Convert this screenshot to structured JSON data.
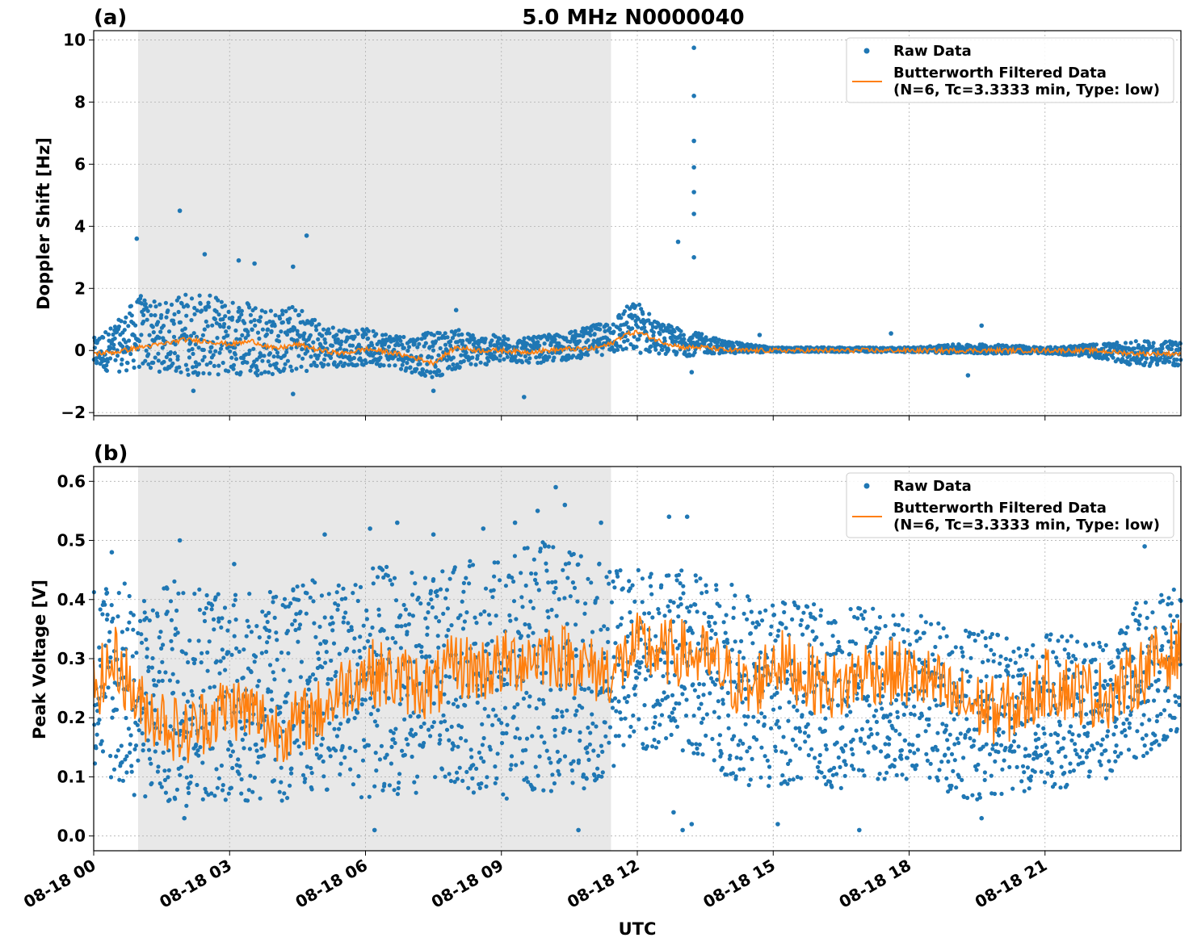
{
  "figure": {
    "title": "5.0 MHz N0000040",
    "xlabel": "UTC"
  },
  "chart_data": [
    {
      "panel": "(a)",
      "type": "scatter",
      "ylabel": "Doppler Shift [Hz]",
      "xlim_hours": [
        0,
        24
      ],
      "ylim": [
        -2.1,
        10.3
      ],
      "yticks": [
        -2,
        0,
        2,
        4,
        6,
        8,
        10
      ],
      "yticklabels": [
        "−2",
        "0",
        "2",
        "4",
        "6",
        "8",
        "10"
      ],
      "grid": true,
      "legend_position": "top-right",
      "shaded_region_hours": [
        0.98,
        11.42
      ],
      "series": [
        {
          "name": "Raw Data",
          "style": "points",
          "color": "#1f77b4",
          "envelope": {
            "x": [
              0,
              0.5,
              1,
              1.5,
              2,
              2.5,
              3,
              3.5,
              4,
              4.5,
              5,
              5.5,
              6,
              6.5,
              7,
              7.5,
              8,
              8.5,
              9,
              9.5,
              10,
              10.5,
              11,
              11.4,
              11.7,
              12,
              12.5,
              13,
              13.5,
              14,
              15,
              16,
              17,
              18,
              19,
              20,
              21,
              22,
              23,
              24
            ],
            "upper": [
              0.4,
              0.9,
              1.8,
              1.5,
              1.9,
              1.8,
              1.6,
              1.7,
              1.3,
              1.5,
              0.9,
              0.7,
              0.7,
              0.6,
              0.5,
              0.6,
              0.7,
              0.5,
              0.5,
              0.4,
              0.5,
              0.6,
              0.8,
              1.0,
              1.4,
              1.6,
              0.9,
              0.7,
              0.5,
              0.3,
              0.1,
              0.1,
              0.1,
              0.1,
              0.2,
              0.2,
              0.1,
              0.2,
              0.3,
              0.3
            ],
            "lower": [
              -0.6,
              -0.7,
              -0.6,
              -0.7,
              -0.8,
              -0.8,
              -0.8,
              -0.8,
              -0.8,
              -0.7,
              -0.6,
              -0.5,
              -0.5,
              -0.5,
              -0.7,
              -0.9,
              -0.6,
              -0.5,
              -0.4,
              -0.4,
              -0.4,
              -0.3,
              -0.2,
              -0.1,
              -0.1,
              -0.1,
              -0.1,
              -0.2,
              -0.1,
              -0.1,
              -0.05,
              -0.05,
              -0.05,
              -0.05,
              -0.1,
              -0.1,
              -0.1,
              -0.2,
              -0.5,
              -0.5
            ]
          },
          "spikes": [
            {
              "x": 0.95,
              "y": 3.6
            },
            {
              "x": 1.9,
              "y": 4.5
            },
            {
              "x": 2.45,
              "y": 3.1
            },
            {
              "x": 3.2,
              "y": 2.9
            },
            {
              "x": 3.55,
              "y": 2.8
            },
            {
              "x": 4.4,
              "y": 2.7
            },
            {
              "x": 4.7,
              "y": 3.7
            },
            {
              "x": 2.2,
              "y": -1.3
            },
            {
              "x": 4.4,
              "y": -1.4
            },
            {
              "x": 7.5,
              "y": -1.3
            },
            {
              "x": 9.5,
              "y": -1.5
            },
            {
              "x": 8.0,
              "y": 1.3
            },
            {
              "x": 12.9,
              "y": 3.5
            },
            {
              "x": 13.25,
              "y": 9.75
            },
            {
              "x": 13.25,
              "y": 8.2
            },
            {
              "x": 13.25,
              "y": 6.75
            },
            {
              "x": 13.25,
              "y": 5.9
            },
            {
              "x": 13.25,
              "y": 5.1
            },
            {
              "x": 13.25,
              "y": 4.4
            },
            {
              "x": 13.25,
              "y": 3.0
            },
            {
              "x": 13.2,
              "y": -0.7
            },
            {
              "x": 14.7,
              "y": 0.5
            },
            {
              "x": 17.6,
              "y": 0.55
            },
            {
              "x": 19.6,
              "y": 0.8
            },
            {
              "x": 19.3,
              "y": -0.8
            }
          ]
        },
        {
          "name": "Butterworth Filtered Data\n(N=6, Tc=3.3333 min, Type: low)",
          "style": "line",
          "color": "#ff7f0e",
          "x": [
            0,
            0.5,
            1,
            1.5,
            2,
            2.5,
            3,
            3.5,
            4,
            4.5,
            5,
            5.5,
            6,
            6.5,
            7,
            7.5,
            8,
            8.5,
            9,
            9.5,
            10,
            10.5,
            11,
            11.4,
            11.7,
            12,
            12.5,
            13,
            13.5,
            14,
            15,
            16,
            17,
            18,
            19,
            20,
            21,
            22,
            23,
            24
          ],
          "y": [
            -0.1,
            -0.05,
            0.1,
            0.2,
            0.35,
            0.3,
            0.2,
            0.3,
            0.05,
            0.2,
            0.0,
            -0.1,
            0.05,
            -0.05,
            -0.2,
            -0.4,
            0.1,
            0.0,
            0.0,
            -0.05,
            0.0,
            0.05,
            0.05,
            0.2,
            0.5,
            0.6,
            0.3,
            0.1,
            0.1,
            0.0,
            0.0,
            0.0,
            0.0,
            0.0,
            0.0,
            0.0,
            0.0,
            0.0,
            -0.1,
            -0.1
          ]
        }
      ]
    },
    {
      "panel": "(b)",
      "type": "scatter",
      "ylabel": "Peak Voltage [V]",
      "xlim_hours": [
        0,
        24
      ],
      "ylim": [
        -0.025,
        0.625
      ],
      "yticks": [
        0.0,
        0.1,
        0.2,
        0.3,
        0.4,
        0.5,
        0.6
      ],
      "yticklabels": [
        "0.0",
        "0.1",
        "0.2",
        "0.3",
        "0.4",
        "0.5",
        "0.6"
      ],
      "grid": true,
      "legend_position": "top-right",
      "shaded_region_hours": [
        0.98,
        11.42
      ],
      "series": [
        {
          "name": "Raw Data",
          "style": "points",
          "color": "#1f77b4",
          "envelope": {
            "x": [
              0,
              0.5,
              1,
              1.5,
              2,
              2.5,
              3,
              3.5,
              4,
              4.5,
              5,
              5.5,
              6,
              6.5,
              7,
              7.5,
              8,
              8.5,
              9,
              9.5,
              10,
              10.5,
              11,
              11.5,
              12,
              12.5,
              13,
              13.5,
              14,
              14.5,
              15,
              15.5,
              16,
              16.5,
              17,
              17.5,
              18,
              18.5,
              19,
              19.5,
              20,
              20.5,
              21,
              21.5,
              22,
              22.5,
              23,
              23.5,
              24
            ],
            "upper": [
              0.43,
              0.45,
              0.4,
              0.42,
              0.45,
              0.43,
              0.42,
              0.41,
              0.42,
              0.43,
              0.44,
              0.43,
              0.45,
              0.46,
              0.45,
              0.44,
              0.46,
              0.47,
              0.47,
              0.49,
              0.5,
              0.49,
              0.47,
              0.45,
              0.46,
              0.45,
              0.45,
              0.44,
              0.43,
              0.41,
              0.4,
              0.4,
              0.39,
              0.38,
              0.39,
              0.38,
              0.38,
              0.37,
              0.36,
              0.35,
              0.34,
              0.33,
              0.35,
              0.34,
              0.33,
              0.33,
              0.4,
              0.42,
              0.43
            ],
            "lower": [
              0.12,
              0.08,
              0.06,
              0.05,
              0.05,
              0.06,
              0.06,
              0.05,
              0.05,
              0.06,
              0.08,
              0.07,
              0.06,
              0.07,
              0.07,
              0.08,
              0.08,
              0.07,
              0.06,
              0.07,
              0.07,
              0.08,
              0.08,
              0.12,
              0.14,
              0.15,
              0.14,
              0.13,
              0.1,
              0.08,
              0.08,
              0.09,
              0.08,
              0.08,
              0.1,
              0.09,
              0.09,
              0.08,
              0.07,
              0.06,
              0.06,
              0.07,
              0.08,
              0.08,
              0.09,
              0.1,
              0.12,
              0.15,
              0.18
            ]
          },
          "spikes": [
            {
              "x": 0.4,
              "y": 0.48
            },
            {
              "x": 1.9,
              "y": 0.5
            },
            {
              "x": 3.1,
              "y": 0.46
            },
            {
              "x": 5.1,
              "y": 0.51
            },
            {
              "x": 6.1,
              "y": 0.52
            },
            {
              "x": 6.7,
              "y": 0.53
            },
            {
              "x": 7.5,
              "y": 0.51
            },
            {
              "x": 8.6,
              "y": 0.52
            },
            {
              "x": 9.3,
              "y": 0.53
            },
            {
              "x": 9.8,
              "y": 0.55
            },
            {
              "x": 10.2,
              "y": 0.59
            },
            {
              "x": 10.4,
              "y": 0.56
            },
            {
              "x": 11.2,
              "y": 0.53
            },
            {
              "x": 12.7,
              "y": 0.54
            },
            {
              "x": 13.1,
              "y": 0.54
            },
            {
              "x": 13.0,
              "y": 0.01
            },
            {
              "x": 12.8,
              "y": 0.04
            },
            {
              "x": 13.2,
              "y": 0.02
            },
            {
              "x": 6.2,
              "y": 0.01
            },
            {
              "x": 10.7,
              "y": 0.01
            },
            {
              "x": 16.9,
              "y": 0.01
            },
            {
              "x": 15.1,
              "y": 0.02
            },
            {
              "x": 19.6,
              "y": 0.03
            },
            {
              "x": 23.2,
              "y": 0.49
            },
            {
              "x": 2.0,
              "y": 0.03
            }
          ]
        },
        {
          "name": "Butterworth Filtered Data\n(N=6, Tc=3.3333 min, Type: low)",
          "style": "line",
          "color": "#ff7f0e",
          "x": [
            0,
            0.5,
            1,
            1.5,
            2,
            2.5,
            3,
            3.5,
            4,
            4.5,
            5,
            5.5,
            6,
            6.5,
            7,
            7.5,
            8,
            8.5,
            9,
            9.5,
            10,
            10.5,
            11,
            11.5,
            12,
            12.5,
            13,
            13.5,
            14,
            14.5,
            15,
            15.5,
            16,
            16.5,
            17,
            17.5,
            18,
            18.5,
            19,
            19.5,
            20,
            20.5,
            21,
            21.5,
            22,
            22.5,
            23,
            23.5,
            24
          ],
          "y": [
            0.25,
            0.3,
            0.22,
            0.2,
            0.17,
            0.2,
            0.22,
            0.21,
            0.18,
            0.19,
            0.21,
            0.25,
            0.28,
            0.27,
            0.26,
            0.25,
            0.29,
            0.28,
            0.29,
            0.3,
            0.31,
            0.3,
            0.28,
            0.28,
            0.32,
            0.31,
            0.31,
            0.3,
            0.27,
            0.24,
            0.3,
            0.28,
            0.26,
            0.25,
            0.28,
            0.28,
            0.27,
            0.26,
            0.23,
            0.22,
            0.21,
            0.22,
            0.26,
            0.25,
            0.24,
            0.24,
            0.27,
            0.3,
            0.31
          ]
        }
      ]
    }
  ],
  "xaxis": {
    "ticks_hours": [
      0,
      3,
      6,
      9,
      12,
      15,
      18,
      21
    ],
    "ticklabels": [
      "08-18 00",
      "08-18 03",
      "08-18 06",
      "08-18 09",
      "08-18 12",
      "08-18 15",
      "08-18 18",
      "08-18 21"
    ]
  },
  "legend": {
    "raw_label": "Raw Data",
    "filtered_label_line1": "Butterworth Filtered Data",
    "filtered_label_line2": "(N=6, Tc=3.3333 min, Type: low)"
  },
  "colors": {
    "raw": "#1f77b4",
    "filtered": "#ff7f0e",
    "shade": "#e8e8e8",
    "grid": "#b0b0b0"
  }
}
